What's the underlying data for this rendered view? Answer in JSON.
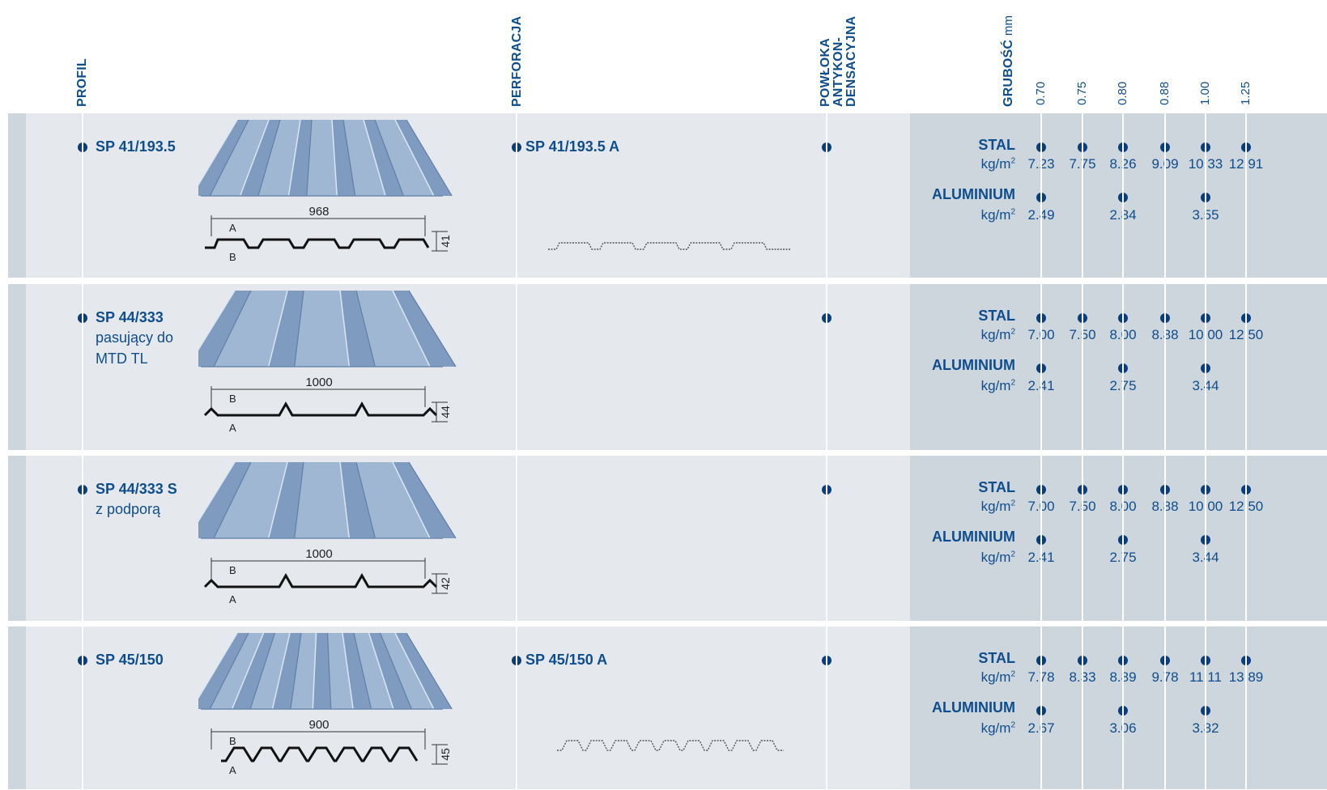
{
  "headers": {
    "profil": "PROFIL",
    "perforacja": "PERFORACJA",
    "powloka": [
      "POWŁOKA",
      "ANTYKON-",
      "DENSACYJNA"
    ],
    "grubosc": "GRUBOŚĆ",
    "grubosc_unit": "mm",
    "thicknesses": [
      "0.70",
      "0.75",
      "0.80",
      "0.88",
      "1.00",
      "1.25"
    ]
  },
  "labels": {
    "stal": "STAL",
    "aluminium": "ALUMINIUM",
    "unit": "kg/m",
    "unit_sup": "2"
  },
  "rows": [
    {
      "name": "SP 41/193.5",
      "sub": [],
      "perforation": "SP 41/193.5 A",
      "dims": {
        "width": "968",
        "height": "41",
        "a": "A",
        "b": "B"
      },
      "stal": [
        "7.23",
        "7.75",
        "8.26",
        "9.09",
        "10.33",
        "12.91"
      ],
      "aluminium": [
        "2.49",
        "",
        "2.84",
        "",
        "3.55",
        ""
      ]
    },
    {
      "name": "SP 44/333",
      "sub": [
        "pasujący do",
        "MTD TL"
      ],
      "perforation": "",
      "dims": {
        "width": "1000",
        "height": "44",
        "a": "A",
        "b": "B"
      },
      "stal": [
        "7.00",
        "7.50",
        "8.00",
        "8.88",
        "10.00",
        "12.50"
      ],
      "aluminium": [
        "2.41",
        "",
        "2.75",
        "",
        "3.44",
        ""
      ]
    },
    {
      "name": "SP 44/333 S",
      "sub": [
        "z podporą"
      ],
      "perforation": "",
      "dims": {
        "width": "1000",
        "height": "42",
        "a": "A",
        "b": "B"
      },
      "stal": [
        "7.00",
        "7.50",
        "8.00",
        "8.88",
        "10.00",
        "12.50"
      ],
      "aluminium": [
        "2.41",
        "",
        "2.75",
        "",
        "3.44",
        ""
      ]
    },
    {
      "name": "SP 45/150",
      "sub": [],
      "perforation": "SP 45/150 A",
      "dims": {
        "width": "900",
        "height": "45",
        "a": "A",
        "b": "B"
      },
      "stal": [
        "7.78",
        "8.33",
        "8.89",
        "9.78",
        "11.11",
        "13.89"
      ],
      "aluminium": [
        "2.67",
        "",
        "3.06",
        "",
        "3.82",
        ""
      ]
    }
  ]
}
